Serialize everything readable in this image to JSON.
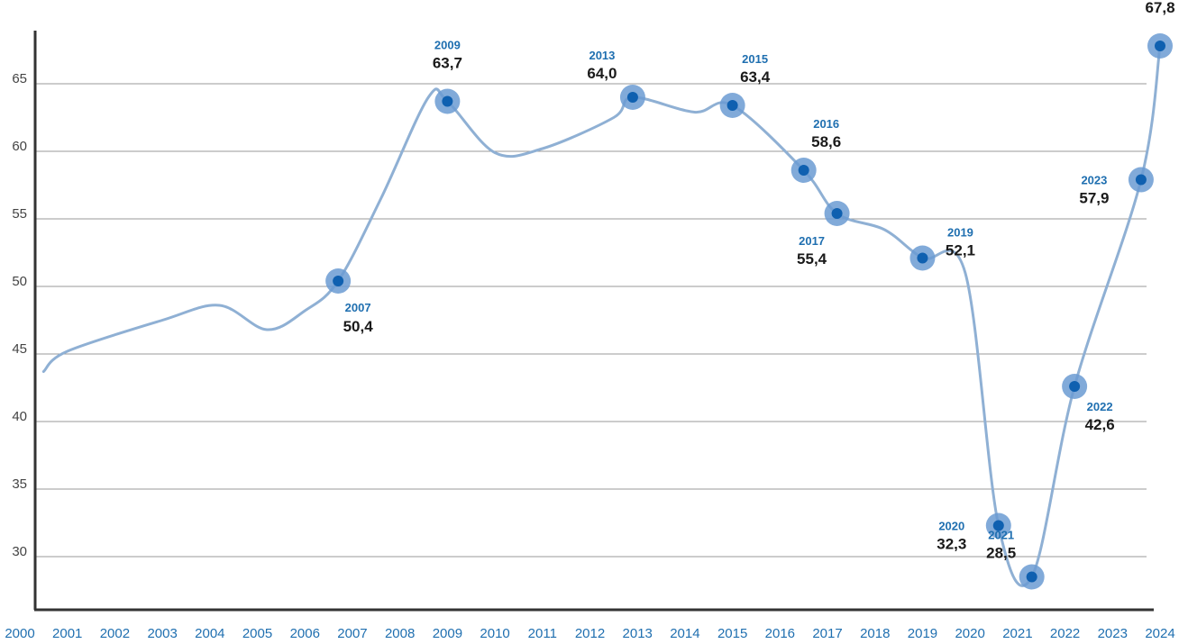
{
  "colors": {
    "line": "#8fb0d4",
    "marker_outer": "#6b9bd2",
    "marker_inner": "#0f60b0",
    "label_year": "#1f6fb0",
    "grid": "#9a9a9a",
    "axis": "#333333"
  },
  "chart_data": {
    "type": "line",
    "x_ticks": [
      "2000",
      "2001",
      "2002",
      "2003",
      "2004",
      "2005",
      "2006",
      "2007",
      "2008",
      "2009",
      "2010",
      "2011",
      "2012",
      "2013",
      "2014",
      "2015",
      "2016",
      "2017",
      "2018",
      "2019",
      "2020",
      "2021",
      "2022",
      "2023",
      "2024"
    ],
    "y_ticks": [
      "30",
      "35",
      "40",
      "45",
      "50",
      "55",
      "60",
      "65"
    ],
    "ylim": [
      26.5,
      68
    ],
    "grid": true,
    "series": [
      {
        "points": [
          {
            "x": 2000.5,
            "y": 43.7
          },
          {
            "x": 2001.0,
            "y": 45.2
          },
          {
            "x": 2003.0,
            "y": 47.5
          },
          {
            "x": 2004.2,
            "y": 48.6
          },
          {
            "x": 2005.2,
            "y": 46.8
          },
          {
            "x": 2006.0,
            "y": 48.2
          },
          {
            "x": 2006.7,
            "y": 50.4
          },
          {
            "x": 2007.6,
            "y": 56.5
          },
          {
            "x": 2008.6,
            "y": 64.0
          },
          {
            "x": 2009.0,
            "y": 63.7
          },
          {
            "x": 2010.0,
            "y": 59.9
          },
          {
            "x": 2011.0,
            "y": 60.2
          },
          {
            "x": 2012.5,
            "y": 62.5
          },
          {
            "x": 2012.9,
            "y": 64.0
          },
          {
            "x": 2014.2,
            "y": 62.9
          },
          {
            "x": 2015.0,
            "y": 63.4
          },
          {
            "x": 2016.5,
            "y": 58.6
          },
          {
            "x": 2017.2,
            "y": 55.4
          },
          {
            "x": 2018.2,
            "y": 54.2
          },
          {
            "x": 2019.0,
            "y": 52.1
          },
          {
            "x": 2019.9,
            "y": 51.0
          },
          {
            "x": 2020.6,
            "y": 32.3
          },
          {
            "x": 2021.3,
            "y": 28.5
          },
          {
            "x": 2022.2,
            "y": 42.6
          },
          {
            "x": 2023.6,
            "y": 57.9
          },
          {
            "x": 2024.0,
            "y": 67.8
          }
        ]
      }
    ],
    "labeled_points": [
      {
        "year": "2007",
        "value": "50,4",
        "x": 2006.7,
        "y": 50.4,
        "pos": "below"
      },
      {
        "year": "2009",
        "value": "63,7",
        "x": 2009.0,
        "y": 63.7,
        "pos": "above"
      },
      {
        "year": "2013",
        "value": "64,0",
        "x": 2012.9,
        "y": 64.0,
        "pos": "above-left"
      },
      {
        "year": "2015",
        "value": "63,4",
        "x": 2015.0,
        "y": 63.4,
        "pos": "above-right"
      },
      {
        "year": "2016",
        "value": "58,6",
        "x": 2016.5,
        "y": 58.6,
        "pos": "above-right"
      },
      {
        "year": "2017",
        "value": "55,4",
        "x": 2017.2,
        "y": 55.4,
        "pos": "below-left"
      },
      {
        "year": "2019",
        "value": "52,1",
        "x": 2019.0,
        "y": 52.1,
        "pos": "right"
      },
      {
        "year": "2020",
        "value": "32,3",
        "x": 2020.6,
        "y": 32.3,
        "pos": "left"
      },
      {
        "year": "2021",
        "value": "28,5",
        "x": 2021.3,
        "y": 28.5,
        "pos": "above-left"
      },
      {
        "year": "2022",
        "value": "42,6",
        "x": 2022.2,
        "y": 42.6,
        "pos": "below-right"
      },
      {
        "year": "2023",
        "value": "57,9",
        "x": 2023.6,
        "y": 57.9,
        "pos": "left"
      },
      {
        "year": "2024",
        "value": "67,8",
        "x": 2024.0,
        "y": 67.8,
        "pos": "above"
      }
    ]
  }
}
